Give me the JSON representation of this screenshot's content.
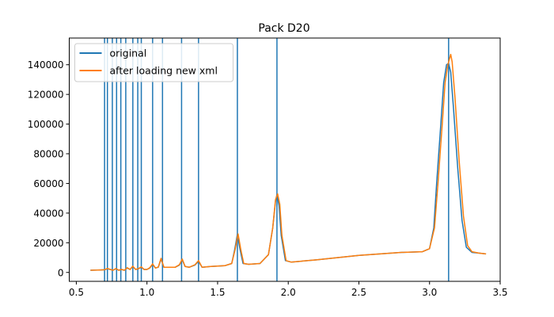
{
  "chart_data": {
    "type": "line",
    "title": "Pack D20",
    "xlabel": "",
    "ylabel": "",
    "xlim": [
      0.45,
      3.5
    ],
    "ylim": [
      -6000,
      158000
    ],
    "xticks": [
      0.5,
      1.0,
      1.5,
      2.0,
      2.5,
      3.0,
      3.5
    ],
    "xtick_labels": [
      "0.5",
      "1.0",
      "1.5",
      "2.0",
      "2.5",
      "3.0",
      "3.5"
    ],
    "yticks": [
      0,
      20000,
      40000,
      60000,
      80000,
      100000,
      120000,
      140000
    ],
    "ytick_labels": [
      "0",
      "20000",
      "40000",
      "60000",
      "80000",
      "100000",
      "120000",
      "140000"
    ],
    "grid": false,
    "legend_position": "top-left",
    "vertical_lines": {
      "color": "#1f77b4",
      "x": [
        0.7,
        0.72,
        0.755,
        0.785,
        0.815,
        0.85,
        0.9,
        0.935,
        0.96,
        1.04,
        1.11,
        1.245,
        1.365,
        1.64,
        1.92,
        3.135
      ]
    },
    "series": [
      {
        "name": "original",
        "color": "#1f77b4",
        "x": [
          0.6,
          0.65,
          0.7,
          0.72,
          0.74,
          0.76,
          0.78,
          0.8,
          0.82,
          0.84,
          0.86,
          0.88,
          0.9,
          0.92,
          0.94,
          0.96,
          0.98,
          1.0,
          1.02,
          1.04,
          1.06,
          1.08,
          1.1,
          1.12,
          1.15,
          1.2,
          1.23,
          1.25,
          1.27,
          1.3,
          1.34,
          1.365,
          1.39,
          1.45,
          1.55,
          1.6,
          1.62,
          1.64,
          1.66,
          1.68,
          1.72,
          1.8,
          1.86,
          1.89,
          1.91,
          1.92,
          1.935,
          1.95,
          1.98,
          2.02,
          2.2,
          2.5,
          2.8,
          2.95,
          3.0,
          3.03,
          3.05,
          3.08,
          3.1,
          3.12,
          3.135,
          3.15,
          3.17,
          3.2,
          3.23,
          3.26,
          3.3,
          3.35,
          3.4
        ],
        "values": [
          1500,
          1600,
          1800,
          2500,
          2000,
          1500,
          2500,
          1500,
          2000,
          1500,
          3000,
          2000,
          4000,
          2000,
          2500,
          3500,
          2000,
          2000,
          3000,
          5500,
          3000,
          3500,
          9000,
          3500,
          3500,
          3500,
          5000,
          8500,
          4000,
          3500,
          5000,
          7500,
          3500,
          4000,
          4500,
          6000,
          15000,
          25500,
          15000,
          6000,
          5500,
          6000,
          12000,
          30000,
          48000,
          52500,
          45000,
          25000,
          8000,
          7000,
          8500,
          11500,
          13500,
          14000,
          16000,
          30000,
          60000,
          100000,
          128000,
          140000,
          141000,
          135000,
          110000,
          70000,
          35000,
          17000,
          13500,
          13000,
          12500
        ]
      },
      {
        "name": "after loading new xml",
        "color": "#ff7f0e",
        "x": [
          0.6,
          0.65,
          0.7,
          0.72,
          0.74,
          0.76,
          0.78,
          0.8,
          0.82,
          0.84,
          0.86,
          0.88,
          0.9,
          0.92,
          0.94,
          0.96,
          0.98,
          1.0,
          1.02,
          1.04,
          1.06,
          1.08,
          1.1,
          1.12,
          1.15,
          1.2,
          1.23,
          1.25,
          1.27,
          1.3,
          1.34,
          1.365,
          1.39,
          1.45,
          1.55,
          1.6,
          1.625,
          1.645,
          1.665,
          1.685,
          1.72,
          1.8,
          1.86,
          1.89,
          1.91,
          1.925,
          1.94,
          1.955,
          1.985,
          2.02,
          2.2,
          2.5,
          2.8,
          2.95,
          3.0,
          3.035,
          3.06,
          3.09,
          3.11,
          3.13,
          3.15,
          3.16,
          3.18,
          3.21,
          3.24,
          3.27,
          3.3,
          3.35,
          3.4
        ],
        "values": [
          1500,
          1600,
          1800,
          2700,
          2000,
          1500,
          2600,
          1500,
          2000,
          1500,
          3200,
          2000,
          4200,
          2000,
          2600,
          3800,
          2000,
          2000,
          3200,
          5800,
          3000,
          3600,
          9500,
          3500,
          3500,
          3500,
          5200,
          9000,
          4000,
          3500,
          5200,
          8000,
          3500,
          4000,
          4500,
          6000,
          16000,
          26000,
          15000,
          6000,
          5500,
          6000,
          12000,
          30000,
          49000,
          53000,
          46000,
          25000,
          8000,
          7000,
          8500,
          11500,
          13500,
          14000,
          16000,
          30000,
          60000,
          100000,
          128000,
          140000,
          147000,
          142000,
          118000,
          75000,
          38000,
          18000,
          14000,
          13000,
          12500
        ]
      }
    ]
  }
}
